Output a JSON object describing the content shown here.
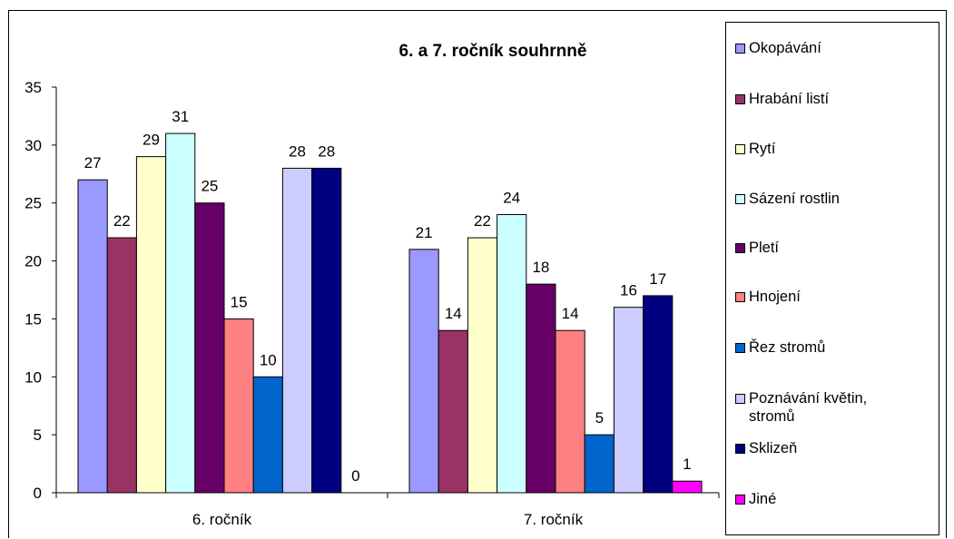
{
  "chart_data": {
    "type": "bar",
    "title": "6. a 7. ročník souhrnně",
    "xlabel": "",
    "ylabel": "",
    "ylim": [
      0,
      35
    ],
    "yticks": [
      0,
      5,
      10,
      15,
      20,
      25,
      30,
      35
    ],
    "categories": [
      "6. ročník",
      "7. ročník"
    ],
    "grid": false,
    "legend_position": "right",
    "series": [
      {
        "name": "Okopávání",
        "color": "#9999FF",
        "values": [
          27,
          21
        ]
      },
      {
        "name": "Hrabání listí",
        "color": "#993366",
        "values": [
          22,
          14
        ]
      },
      {
        "name": "Rytí",
        "color": "#FFFFCC",
        "values": [
          29,
          22
        ]
      },
      {
        "name": "Sázení rostlin",
        "color": "#CCFFFF",
        "values": [
          31,
          24
        ]
      },
      {
        "name": "Pletí",
        "color": "#660066",
        "values": [
          25,
          18
        ]
      },
      {
        "name": "Hnojení",
        "color": "#FF8080",
        "values": [
          15,
          14
        ]
      },
      {
        "name": "Řez stromů",
        "color": "#0066CC",
        "values": [
          10,
          5
        ]
      },
      {
        "name": "Poznávání květin, stromů",
        "color": "#CCCCFF",
        "values": [
          28,
          16
        ]
      },
      {
        "name": "Sklizeň",
        "color": "#000080",
        "values": [
          28,
          17
        ]
      },
      {
        "name": "Jiné",
        "color": "#FF00FF",
        "values": [
          0,
          1
        ]
      }
    ]
  }
}
